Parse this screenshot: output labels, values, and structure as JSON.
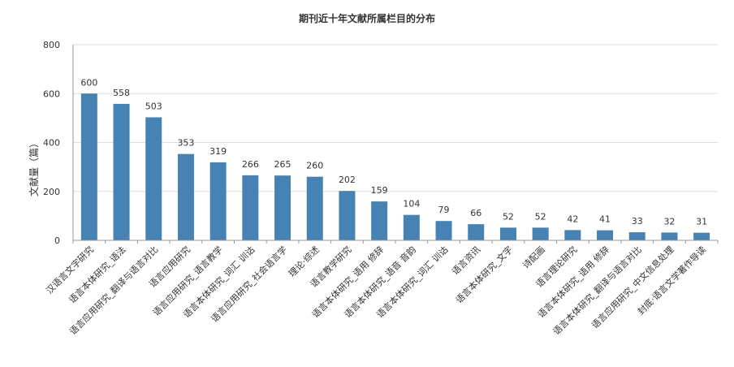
{
  "chart_data": {
    "type": "bar",
    "title": "期刊近十年文献所属栏目的分布",
    "xlabel": "",
    "ylabel": "文献量（篇）",
    "ylim": [
      0,
      800
    ],
    "yticks": [
      0,
      200,
      400,
      600,
      800
    ],
    "grid": true,
    "bar_color": "#4682b4",
    "categories": [
      "汉语言文字研究",
      "语言本体研究_语法",
      "语言应用研究_翻译与语言对比",
      "语言应用研究",
      "语言应用研究_语言教学",
      "语言本体研究_词汇 训诂",
      "语言应用研究_社会语言学",
      "理论·综述",
      "语言教学研究",
      "语言本体研究_语用 修辞",
      "语言本体研究_语音 音韵",
      "语言本体研究_词汇 训诂",
      "语言资讯",
      "语言本体研究_文字",
      "诗配画",
      "语言理论研究",
      "语言本体研究_语用 修辞",
      "语言本体研究_翻译与语言对比",
      "语言应用研究_中文信息处理",
      "封底·语言文学著作导读"
    ],
    "values": [
      600,
      558,
      503,
      353,
      319,
      266,
      265,
      260,
      202,
      159,
      104,
      79,
      66,
      52,
      52,
      42,
      41,
      33,
      32,
      31
    ]
  }
}
